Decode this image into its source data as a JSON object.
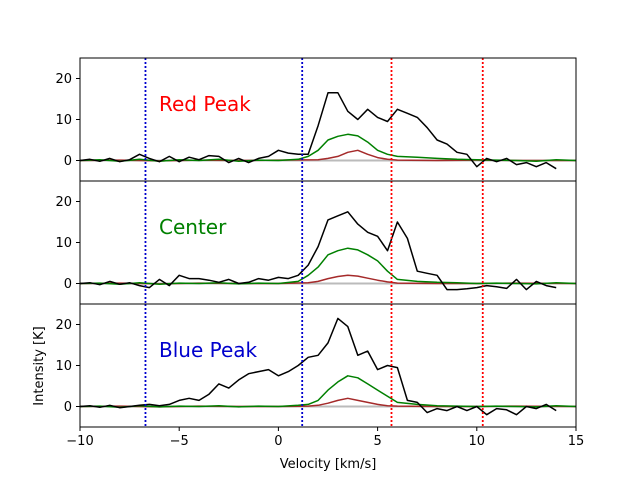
{
  "chart_data": {
    "type": "line",
    "xlabel": "Velocity [km/s]",
    "ylabel": "Intensity [K]",
    "xlim": [
      -10,
      15
    ],
    "ylim": [
      -5,
      25
    ],
    "xticks": [
      -10,
      -5,
      0,
      5,
      10,
      15
    ],
    "yticks": [
      0,
      10,
      20
    ],
    "grid": false,
    "colors": {
      "black": "#000000",
      "green": "#008000",
      "brown": "#a52a2a",
      "gray": "#bbbbbb",
      "red": "#ff0000",
      "blue": "#0000cd"
    },
    "vlines": [
      {
        "x": -6.7,
        "color": "blue"
      },
      {
        "x": 1.2,
        "color": "blue"
      },
      {
        "x": 5.7,
        "color": "red"
      },
      {
        "x": 10.3,
        "color": "red"
      }
    ],
    "panels": [
      {
        "label": "Red Peak",
        "label_color": "red",
        "series": [
          {
            "color": "black",
            "x": [
              -10,
              -9.5,
              -9,
              -8.5,
              -8,
              -7.5,
              -7,
              -6.5,
              -6,
              -5.5,
              -5,
              -4.5,
              -4,
              -3.5,
              -3,
              -2.5,
              -2,
              -1.5,
              -1,
              -0.5,
              0,
              0.5,
              1,
              1.5,
              2,
              2.5,
              3,
              3.5,
              4,
              4.5,
              5,
              5.5,
              6,
              6.5,
              7,
              7.5,
              8,
              8.5,
              9,
              9.5,
              10,
              10.5,
              11,
              11.5,
              12,
              12.5,
              13,
              13.5,
              14
            ],
            "y": [
              0,
              0.3,
              -0.2,
              0.5,
              -0.3,
              0.2,
              1.5,
              0.5,
              -0.3,
              1.0,
              -0.3,
              0.8,
              0.2,
              1.2,
              1.0,
              -0.5,
              0.5,
              -0.5,
              0.5,
              1.0,
              2.5,
              1.8,
              1.5,
              1.5,
              8.5,
              16.5,
              16.5,
              12,
              10,
              12.5,
              10.5,
              9.5,
              12.5,
              11.5,
              10.5,
              8,
              5,
              4,
              2,
              1.5,
              -1.5,
              0.5,
              -0.3,
              0.5,
              -1,
              -0.5,
              -1.5,
              -0.5,
              -2
            ]
          },
          {
            "color": "green",
            "x": [
              -10,
              -9,
              -8,
              -7,
              -6,
              -5,
              -4,
              -3,
              -2,
              -1,
              0,
              1,
              1.5,
              2,
              2.5,
              3,
              3.5,
              4,
              4.5,
              5,
              5.5,
              6,
              7,
              8,
              9,
              10,
              11,
              12,
              13,
              14,
              15
            ],
            "y": [
              0,
              0.2,
              -0.2,
              0.3,
              -0.2,
              0.2,
              0,
              0.3,
              -0.2,
              0.1,
              0,
              0.3,
              1,
              2.5,
              5,
              5.9,
              6.4,
              6,
              4.5,
              2.5,
              1.5,
              1,
              0.8,
              0.5,
              0.3,
              0.2,
              0.1,
              0,
              -0.2,
              0.2,
              0
            ]
          },
          {
            "color": "brown",
            "x": [
              -10,
              -8,
              -6,
              -4,
              -2,
              0,
              2,
              2.5,
              3,
              3.5,
              4,
              4.5,
              5,
              5.5,
              6,
              8,
              10,
              12,
              15
            ],
            "y": [
              0,
              0.1,
              -0.1,
              0.1,
              0,
              0.1,
              0.2,
              0.5,
              1,
              2,
              2.5,
              1.5,
              0.7,
              0.3,
              0.1,
              0,
              0.1,
              0,
              0
            ]
          },
          {
            "color": "gray",
            "x": [
              -10,
              15
            ],
            "y": [
              0,
              0
            ]
          }
        ]
      },
      {
        "label": "Center",
        "label_color": "green",
        "series": [
          {
            "color": "black",
            "x": [
              -10,
              -9.5,
              -9,
              -8.5,
              -8,
              -7.5,
              -7,
              -6.5,
              -6,
              -5.5,
              -5,
              -4.5,
              -4,
              -3.5,
              -3,
              -2.5,
              -2,
              -1.5,
              -1,
              -0.5,
              0,
              0.5,
              1,
              1.5,
              2,
              2.5,
              3,
              3.5,
              4,
              4.5,
              5,
              5.5,
              6,
              6.5,
              7,
              7.5,
              8,
              8.5,
              9,
              9.5,
              10,
              10.5,
              11,
              11.5,
              12,
              12.5,
              13,
              13.5,
              14
            ],
            "y": [
              0,
              0.2,
              -0.3,
              0.5,
              -0.2,
              0.2,
              -0.5,
              -1,
              1,
              -0.5,
              2,
              1.2,
              1.2,
              0.8,
              0.3,
              1,
              0,
              0.3,
              1.2,
              0.8,
              1.5,
              1.2,
              2,
              4.5,
              9,
              15.5,
              16.5,
              17.5,
              14.5,
              12.5,
              11.5,
              8,
              15,
              11,
              3,
              2.5,
              2,
              -1.5,
              -1.5,
              -1.3,
              -1,
              -0.5,
              -0.8,
              -1.2,
              1,
              -1.5,
              0.5,
              -0.5,
              -1
            ]
          },
          {
            "color": "green",
            "x": [
              -10,
              -9,
              -8,
              -7,
              -6,
              -5,
              -4,
              -3,
              -2,
              -1,
              0,
              1,
              1.5,
              2,
              2.5,
              3,
              3.5,
              4,
              4.5,
              5,
              5.5,
              6,
              7,
              8,
              9,
              10,
              11,
              12,
              13,
              14,
              15
            ],
            "y": [
              0,
              0.1,
              -0.2,
              0.2,
              -0.2,
              0.1,
              0,
              0.2,
              -0.1,
              0.1,
              0,
              0.5,
              2,
              4,
              7,
              8,
              8.6,
              8.2,
              7,
              5.5,
              3,
              1,
              0.5,
              0.3,
              0.2,
              0,
              0.1,
              0,
              -0.1,
              0.2,
              0
            ]
          },
          {
            "color": "brown",
            "x": [
              -10,
              -8,
              -6,
              -4,
              -2,
              0,
              1.5,
              2,
              2.5,
              3,
              3.5,
              4,
              4.5,
              5,
              5.5,
              6,
              8,
              10,
              12,
              15
            ],
            "y": [
              0,
              0.1,
              -0.1,
              0.1,
              0,
              0,
              0.2,
              0.5,
              1.2,
              1.7,
              2,
              1.8,
              1.3,
              0.8,
              0.4,
              0.1,
              0,
              0,
              0.1,
              0
            ]
          },
          {
            "color": "gray",
            "x": [
              -10,
              15
            ],
            "y": [
              0,
              0
            ]
          }
        ]
      },
      {
        "label": "Blue Peak",
        "label_color": "blue",
        "series": [
          {
            "color": "black",
            "x": [
              -10,
              -9.5,
              -9,
              -8.5,
              -8,
              -7.5,
              -7,
              -6.5,
              -6,
              -5.5,
              -5,
              -4.5,
              -4,
              -3.5,
              -3,
              -2.5,
              -2,
              -1.5,
              -1,
              -0.5,
              0,
              0.5,
              1,
              1.5,
              2,
              2.5,
              3,
              3.5,
              4,
              4.5,
              5,
              5.5,
              6,
              6.5,
              7,
              7.5,
              8,
              8.5,
              9,
              9.5,
              10,
              10.5,
              11,
              11.5,
              12,
              12.5,
              13,
              13.5,
              14
            ],
            "y": [
              0,
              0.2,
              -0.2,
              0.3,
              -0.3,
              0,
              0.3,
              0.5,
              0.2,
              0.5,
              1.5,
              2,
              1.5,
              3,
              5.5,
              4.5,
              6.5,
              8,
              8.5,
              9,
              7.5,
              8.5,
              10,
              12,
              12.5,
              15.5,
              21.5,
              19.5,
              12.5,
              13.5,
              9,
              10,
              9.5,
              1.5,
              1,
              -1.5,
              -0.5,
              -1,
              0,
              -1,
              0,
              -2,
              -0.5,
              -0.8,
              -2,
              0,
              -0.5,
              0.5,
              -1
            ]
          },
          {
            "color": "green",
            "x": [
              -10,
              -9,
              -8,
              -7,
              -6,
              -5,
              -4,
              -3,
              -2,
              -1,
              0,
              1,
              1.5,
              2,
              2.5,
              3,
              3.5,
              4,
              4.5,
              5,
              5.5,
              6,
              7,
              8,
              9,
              10,
              11,
              12,
              13,
              14,
              15
            ],
            "y": [
              0,
              0.1,
              -0.2,
              0.2,
              -0.1,
              0.1,
              0,
              0.2,
              -0.1,
              0.1,
              0,
              0.3,
              0.5,
              1.5,
              4,
              6,
              7.5,
              7,
              5.5,
              4,
              2.5,
              1,
              0.5,
              0.2,
              0.1,
              0,
              0.1,
              0,
              -0.1,
              0.2,
              0
            ]
          },
          {
            "color": "brown",
            "x": [
              -10,
              -8,
              -6,
              -4,
              -2,
              0,
              1.5,
              2,
              2.5,
              3,
              3.5,
              4,
              4.5,
              5,
              5.5,
              6,
              8,
              10,
              12,
              15
            ],
            "y": [
              0,
              0.1,
              -0.1,
              0.1,
              0,
              0,
              0.1,
              0.3,
              0.8,
              1.5,
              2,
              1.5,
              1,
              0.5,
              0.2,
              0.1,
              0,
              0,
              0.1,
              0
            ]
          },
          {
            "color": "gray",
            "x": [
              -10,
              15
            ],
            "y": [
              0,
              0
            ]
          }
        ]
      }
    ]
  }
}
